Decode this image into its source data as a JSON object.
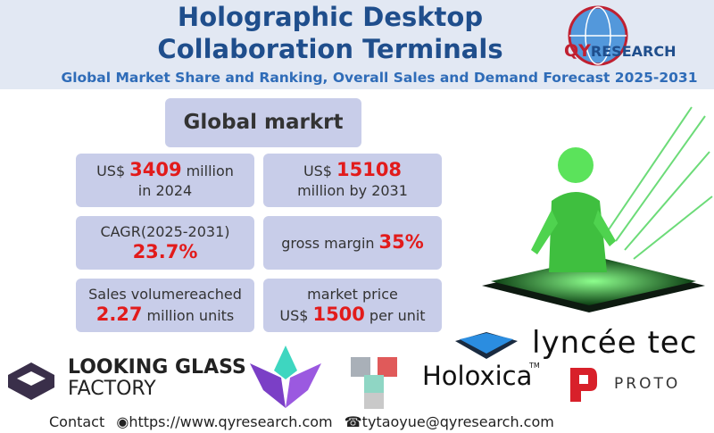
{
  "header": {
    "title_lines": [
      "Holographic Desktop",
      "Collaboration Terminals"
    ],
    "subtitle": "Global Market Share and Ranking, Overall Sales and Demand Forecast 2025-2031",
    "logo": {
      "prefix": "QY",
      "suffix": "RESEARCH"
    }
  },
  "market": {
    "heading": "Global markrt",
    "cards": [
      {
        "lines": [
          [
            {
              "text": "US$",
              "red": false
            },
            {
              "text": "3409",
              "red": true
            },
            {
              "text": "million",
              "red": false
            }
          ],
          [
            {
              "text": "in 2024",
              "red": false
            }
          ]
        ]
      },
      {
        "lines": [
          [
            {
              "text": "US$",
              "red": false
            },
            {
              "text": "15108",
              "red": true
            }
          ],
          [
            {
              "text": "million by 2031",
              "red": false
            }
          ]
        ]
      },
      {
        "lines": [
          [
            {
              "text": "CAGR(2025-2031)",
              "red": false
            }
          ],
          [
            {
              "text": "23.7%",
              "red": true
            }
          ]
        ]
      },
      {
        "lines": [
          [
            {
              "text": "gross margin",
              "red": false
            },
            {
              "text": "35%",
              "red": true
            }
          ]
        ]
      },
      {
        "lines": [
          [
            {
              "text": "Sales volumereached",
              "red": false
            }
          ],
          [
            {
              "text": "2.27",
              "red": true
            },
            {
              "text": "million units",
              "red": false
            }
          ]
        ]
      },
      {
        "lines": [
          [
            {
              "text": "market price",
              "red": false
            }
          ],
          [
            {
              "text": "US$",
              "red": false
            },
            {
              "text": "1500",
              "red": true
            },
            {
              "text": "per unit",
              "red": false
            }
          ]
        ]
      }
    ]
  },
  "logos": {
    "looking_glass": [
      "LOOKING GLASS",
      "FACTORY"
    ],
    "holoxica": "Holoxica",
    "holoxica_tm": "TM",
    "lyncee": "lyncée tec",
    "proto": "PROTO"
  },
  "contact": {
    "label": "Contact",
    "website": "https://www.qyresearch.com",
    "email": "tytaoyue@qyresearch.com"
  }
}
